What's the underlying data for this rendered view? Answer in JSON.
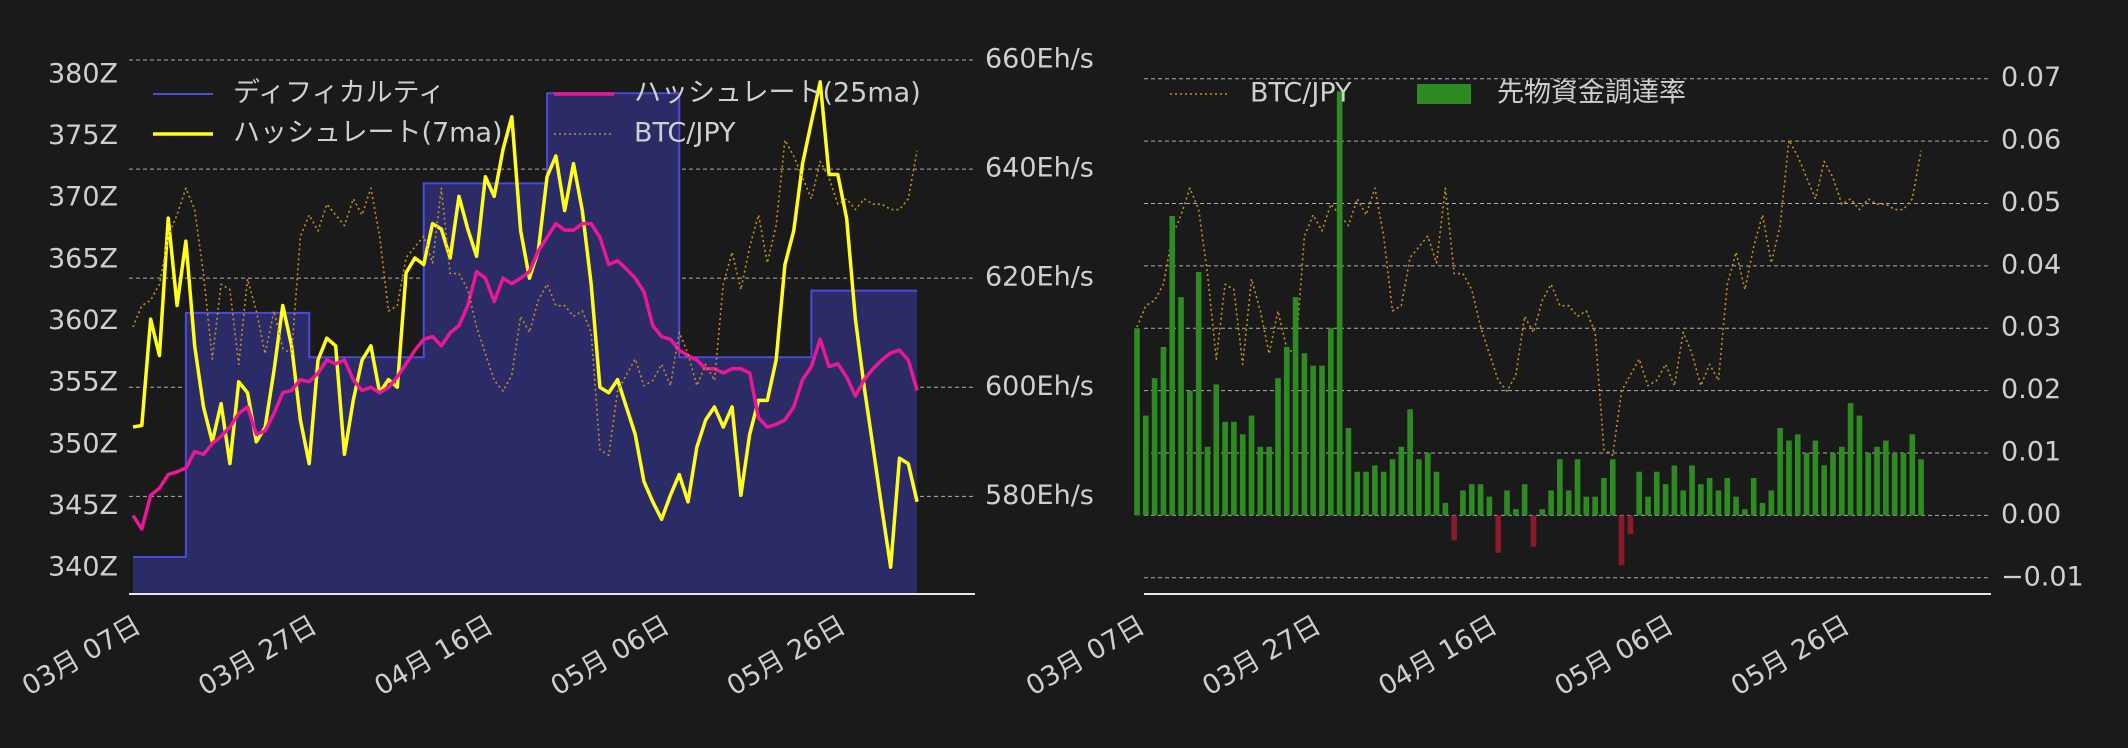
{
  "chart_data": [
    {
      "type": "line",
      "categories": [
        "03月 07日",
        null,
        null,
        null,
        null,
        null,
        null,
        null,
        null,
        null,
        null,
        null,
        null,
        null,
        null,
        null,
        null,
        null,
        null,
        null,
        "03月 27日",
        null,
        null,
        null,
        null,
        null,
        null,
        null,
        null,
        null,
        null,
        null,
        null,
        null,
        null,
        null,
        null,
        null,
        null,
        null,
        "04月 16日",
        null,
        null,
        null,
        null,
        null,
        null,
        null,
        null,
        null,
        null,
        null,
        null,
        null,
        null,
        null,
        null,
        null,
        null,
        null,
        "05月 06日",
        null,
        null,
        null,
        null,
        null,
        null,
        null,
        null,
        null,
        null,
        null,
        null,
        null,
        null,
        null,
        null,
        null,
        null,
        null,
        "05月 26日",
        null,
        null,
        null,
        null,
        null,
        null,
        null,
        null,
        null
      ],
      "ylim": [
        337.9,
        381.2
      ],
      "yticks": [
        {
          "value": 340,
          "label": "340Z"
        },
        {
          "value": 345,
          "label": "345Z"
        },
        {
          "value": 350,
          "label": "350Z"
        },
        {
          "value": 355,
          "label": "355Z"
        },
        {
          "value": 360,
          "label": "360Z"
        },
        {
          "value": 365,
          "label": "365Z"
        },
        {
          "value": 370,
          "label": "370Z"
        },
        {
          "value": 375,
          "label": "375Z"
        },
        {
          "value": 380,
          "label": "380Z"
        }
      ],
      "y2lim": [
        562.1,
        660
      ],
      "y2ticks": [
        {
          "value": 580,
          "label": "580Eh/s"
        },
        {
          "value": 600,
          "label": "600Eh/s"
        },
        {
          "value": 620,
          "label": "620Eh/s"
        },
        {
          "value": 640,
          "label": "640Eh/s"
        },
        {
          "value": 660,
          "label": "660Eh/s"
        }
      ],
      "y3lim": [
        0,
        100
      ],
      "grid": "y2",
      "y_axis_position": "left",
      "legend_loc": "upper left",
      "legend_ncol": 2,
      "series": [
        {
          "name": "ディフィカルティ",
          "type": "step",
          "color": "#4b4bd8",
          "fill": "#2b2b68",
          "axis": "y",
          "values": [
            340.9,
            340.9,
            340.9,
            340.9,
            340.9,
            340.9,
            360.7,
            360.7,
            360.7,
            360.7,
            360.7,
            360.7,
            360.7,
            360.7,
            360.7,
            360.7,
            360.7,
            360.7,
            360.7,
            360.7,
            357.1,
            357.1,
            357.1,
            357.1,
            357.1,
            357.1,
            357.1,
            357.1,
            357.1,
            357.1,
            357.1,
            357.1,
            357.1,
            371.2,
            371.2,
            371.2,
            371.2,
            371.2,
            371.2,
            371.2,
            371.2,
            371.2,
            371.2,
            371.2,
            371.2,
            371.2,
            371.2,
            378.5,
            378.5,
            378.5,
            378.5,
            378.5,
            378.5,
            378.5,
            378.5,
            378.5,
            378.5,
            378.5,
            378.5,
            378.5,
            378.5,
            378.5,
            357.1,
            357.1,
            357.1,
            357.1,
            357.1,
            357.1,
            357.1,
            357.1,
            357.1,
            357.1,
            357.1,
            357.1,
            357.1,
            357.1,
            357.1,
            362.5,
            362.5,
            362.5,
            362.5,
            362.5,
            362.5,
            362.5,
            362.5,
            362.5,
            362.5,
            362.5,
            362.5,
            362.5
          ]
        },
        {
          "name": "ハッシュレート(7ma)",
          "type": "line",
          "color": "#ffff1a",
          "axis": "y2",
          "values": [
            592.7,
            593,
            612.5,
            605.8,
            631,
            615,
            626.8,
            607.6,
            596.4,
            590,
            597,
            586,
            601,
            599,
            590,
            592.7,
            603,
            615,
            607.6,
            594,
            586,
            605,
            609,
            607.6,
            587.7,
            597.6,
            605,
            607.6,
            599,
            601.4,
            600,
            621,
            623.7,
            622.5,
            630,
            629,
            623.7,
            635,
            629,
            624,
            638.6,
            635,
            643.6,
            649.6,
            628.7,
            620,
            625,
            638.6,
            642.4,
            632.4,
            641,
            632.4,
            619,
            600,
            599,
            601.4,
            596.4,
            591.4,
            582.7,
            579,
            575.8,
            580.2,
            584,
            579,
            589,
            594,
            596.4,
            592.7,
            596.4,
            580.2,
            591.4,
            597.6,
            597.6,
            605,
            622.5,
            628.7,
            641,
            648.6,
            656,
            639,
            639,
            631,
            612.5,
            600,
            589,
            577.8,
            567,
            587,
            586,
            579
          ]
        },
        {
          "name": "ハッシュレート(25ma)",
          "type": "line",
          "color": "#ec1796",
          "axis": "y2",
          "values": [
            576.5,
            574,
            580.2,
            581.5,
            584,
            584.5,
            585.2,
            588.2,
            587.7,
            589.7,
            591,
            592.7,
            595.2,
            596.4,
            591.4,
            592,
            595.2,
            599,
            599.4,
            601.4,
            601,
            602.6,
            605,
            604.3,
            605,
            601.4,
            599.4,
            600,
            599,
            600,
            601.9,
            604.3,
            606.8,
            608.8,
            609.3,
            607.6,
            610,
            611.3,
            615,
            621.2,
            620,
            615.7,
            620,
            619,
            620,
            621.2,
            625,
            627.5,
            630,
            628.8,
            628.8,
            630,
            630,
            627.5,
            622.5,
            623.2,
            621.7,
            620,
            617.5,
            611.3,
            609.3,
            608.8,
            606.8,
            605.8,
            605,
            603.4,
            603.4,
            602.6,
            603.4,
            603.4,
            602.6,
            594.4,
            592.7,
            593.2,
            594,
            596.4,
            601.4,
            603.8,
            608.8,
            603.8,
            604.3,
            601.9,
            598.4,
            601.4,
            603.4,
            605,
            606.3,
            606.8,
            605,
            599.4
          ]
        },
        {
          "name": "BTC/JPY",
          "type": "line",
          "dashed": true,
          "color": "#c8901a",
          "axis": "y3",
          "values": [
            50,
            54,
            55,
            58,
            67,
            71,
            76,
            72,
            60,
            44,
            58,
            57,
            43,
            59,
            53,
            45,
            53,
            46,
            45,
            67,
            71,
            68,
            73,
            71,
            69,
            74,
            71,
            76,
            67,
            53,
            54,
            63,
            65,
            67,
            62,
            76,
            60,
            60,
            57,
            50,
            45,
            40,
            38,
            41,
            52,
            49,
            55,
            58,
            54,
            54,
            52,
            53,
            49,
            27,
            26,
            38,
            41,
            44,
            39,
            40,
            43,
            39,
            49,
            45,
            39,
            43,
            40,
            58,
            64,
            57,
            65,
            71,
            62,
            69,
            85,
            82,
            78,
            74,
            81,
            78,
            73,
            74,
            72,
            74,
            73,
            73,
            72,
            72,
            74,
            83
          ]
        }
      ]
    },
    {
      "type": "bar",
      "categories": [
        "03月 07日",
        null,
        null,
        null,
        null,
        null,
        null,
        null,
        null,
        null,
        null,
        null,
        null,
        null,
        null,
        null,
        null,
        null,
        null,
        null,
        "03月 27日",
        null,
        null,
        null,
        null,
        null,
        null,
        null,
        null,
        null,
        null,
        null,
        null,
        null,
        null,
        null,
        null,
        null,
        null,
        null,
        "04月 16日",
        null,
        null,
        null,
        null,
        null,
        null,
        null,
        null,
        null,
        null,
        null,
        null,
        null,
        null,
        null,
        null,
        null,
        null,
        null,
        "05月 06日",
        null,
        null,
        null,
        null,
        null,
        null,
        null,
        null,
        null,
        null,
        null,
        null,
        null,
        null,
        null,
        null,
        null,
        null,
        null,
        "05月 26日",
        null,
        null,
        null,
        null,
        null,
        null,
        null,
        null,
        null
      ],
      "ylim": [
        -0.0126,
        0.073
      ],
      "yticks": [
        {
          "value": -0.01,
          "label": "−0.01"
        },
        {
          "value": 0,
          "label": "0.00"
        },
        0.01,
        0.02,
        0.03,
        0.04,
        0.05,
        0.06,
        0.07
      ],
      "y3lim": [
        0,
        100
      ],
      "grid": "y",
      "y_axis_position": "right",
      "legend_loc": "upper left",
      "legend_ncol": 2,
      "series": [
        {
          "name": "BTC/JPY",
          "type": "line",
          "dashed": true,
          "color": "#c8901a",
          "axis": "y3",
          "values": [
            50,
            54,
            55,
            58,
            67,
            71,
            76,
            72,
            60,
            44,
            58,
            57,
            43,
            59,
            53,
            45,
            53,
            46,
            45,
            67,
            71,
            68,
            73,
            71,
            69,
            74,
            71,
            76,
            67,
            53,
            54,
            63,
            65,
            67,
            62,
            76,
            60,
            60,
            57,
            50,
            45,
            40,
            38,
            41,
            52,
            49,
            55,
            58,
            54,
            54,
            52,
            53,
            49,
            27,
            26,
            38,
            41,
            44,
            39,
            40,
            43,
            39,
            49,
            45,
            39,
            43,
            40,
            58,
            64,
            57,
            65,
            71,
            62,
            69,
            85,
            82,
            78,
            74,
            81,
            78,
            73,
            74,
            72,
            74,
            73,
            73,
            72,
            72,
            74,
            83
          ]
        },
        {
          "name": "先物資金調達率",
          "type": "bar",
          "color": "#2e8b22",
          "negative_color": "#8b1a2a",
          "axis": "y",
          "values": [
            0.03,
            0.016,
            0.022,
            0.027,
            0.048,
            0.035,
            0.02,
            0.039,
            0.011,
            0.021,
            0.015,
            0.015,
            0.013,
            0.016,
            0.011,
            0.011,
            0.022,
            0.027,
            0.035,
            0.026,
            0.024,
            0.024,
            0.03,
            0.068,
            0.014,
            0.007,
            0.007,
            0.008,
            0.007,
            0.009,
            0.011,
            0.017,
            0.009,
            0.01,
            0.007,
            0.002,
            -0.004,
            0.004,
            0.005,
            0.005,
            0.003,
            -0.006,
            0.004,
            0.001,
            0.005,
            -0.005,
            0.001,
            0.004,
            0.009,
            0.004,
            0.009,
            0.003,
            0.003,
            0.006,
            0.009,
            -0.008,
            -0.003,
            0.007,
            0.003,
            0.007,
            0.005,
            0.008,
            0.004,
            0.008,
            0.005,
            0.006,
            0.004,
            0.006,
            0.003,
            0.001,
            0.006,
            0.002,
            0.004,
            0.014,
            0.012,
            0.013,
            0.01,
            0.012,
            0.008,
            0.01,
            0.011,
            0.018,
            0.016,
            0.01,
            0.011,
            0.012,
            0.01,
            0.01,
            0.013,
            0.009
          ]
        }
      ]
    }
  ]
}
